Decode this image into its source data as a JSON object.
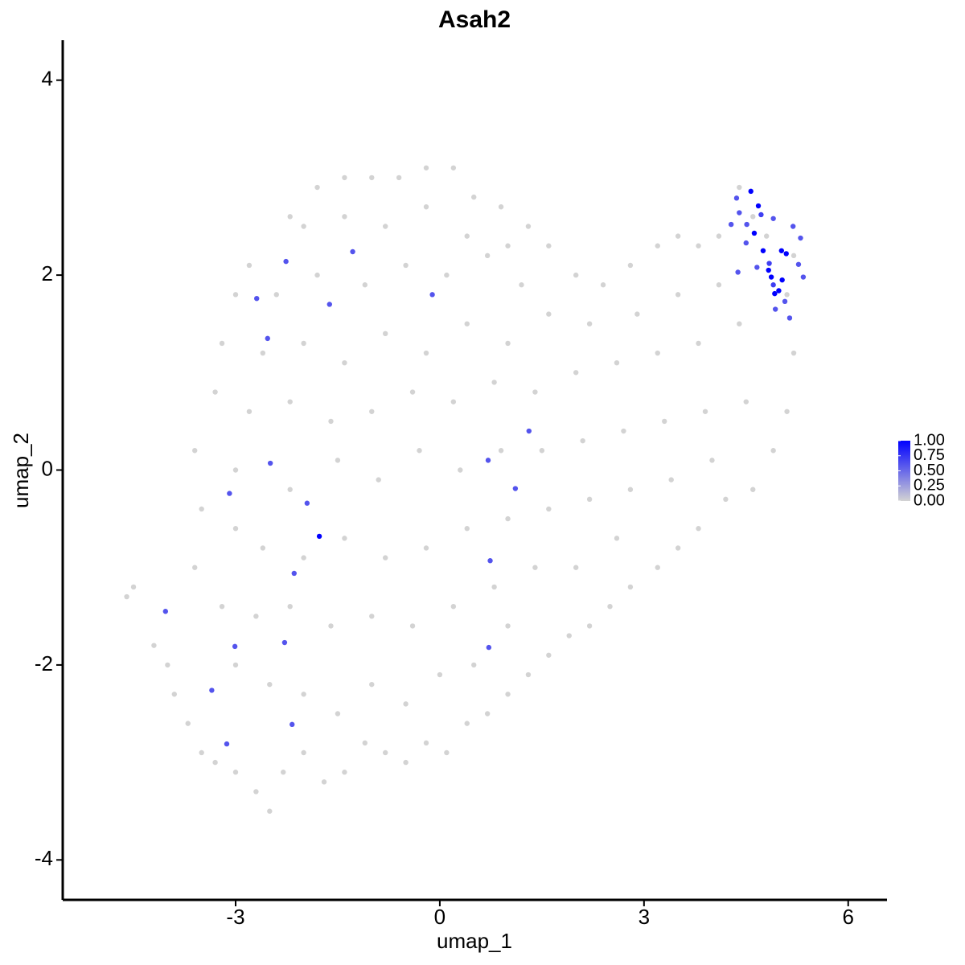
{
  "chart_data": {
    "type": "scatter",
    "title": "Asah2",
    "x_label": "umap_1",
    "y_label": "umap_2",
    "xlim": [
      -5.54,
      6.57
    ],
    "ylim": [
      -4.41,
      4.41
    ],
    "xticks": [
      -3,
      0,
      3,
      6
    ],
    "yticks": [
      -4,
      -2,
      0,
      2,
      4
    ],
    "colorbar": {
      "colors": [
        "#d3d3d3",
        "#0000ff"
      ],
      "lim": [
        0,
        1
      ],
      "ticks": [
        {
          "value": 0,
          "label": "0.00"
        },
        {
          "value": 0.25,
          "label": "0.25"
        },
        {
          "value": 0.5,
          "label": "0.50"
        },
        {
          "value": 0.75,
          "label": "0.75"
        },
        {
          "value": 1,
          "label": "1.00"
        }
      ]
    },
    "series": [
      {
        "expression": 0,
        "x": [
          -4.6,
          -4.5,
          -4.2,
          -4.0,
          -3.9,
          -3.7,
          -3.5,
          -3.3,
          -3.0,
          -2.7,
          -2.5,
          -2.3,
          -2.0,
          -1.7,
          -1.4,
          -1.1,
          -0.8,
          -0.5,
          -0.2,
          0.1,
          0.4,
          0.7,
          1.0,
          -3.6,
          -3.5,
          -3.6,
          -3.3,
          -3.2,
          -3.0,
          -2.8,
          -2.2,
          -1.8,
          -1.4,
          -1.0,
          -0.6,
          -0.2,
          0.2,
          0.5,
          0.9,
          1.3,
          1.6,
          2.0,
          2.4,
          2.8,
          3.2,
          3.5,
          3.8,
          4.1,
          4.4,
          4.6,
          4.8,
          5.2,
          5.1,
          5.2,
          5.1,
          4.9,
          4.6,
          4.2,
          3.8,
          3.5,
          3.2,
          2.8,
          2.5,
          2.2,
          1.9,
          1.6,
          1.3,
          -3.0,
          -2.5,
          -2.0,
          -1.5,
          -1.0,
          -0.5,
          0.0,
          0.5,
          1.0,
          -3.2,
          -2.7,
          -2.2,
          -1.6,
          -1.0,
          -0.4,
          0.2,
          0.8,
          1.4,
          2.0,
          2.6,
          -3.0,
          -2.6,
          -2.0,
          -1.4,
          -0.8,
          -0.2,
          0.4,
          1.0,
          1.6,
          2.2,
          2.8,
          3.4,
          4.0,
          -3.0,
          -2.2,
          -1.5,
          -0.9,
          -0.3,
          0.3,
          0.9,
          1.5,
          2.1,
          2.7,
          3.3,
          3.9,
          4.5,
          -2.8,
          -2.2,
          -1.6,
          -1.0,
          -0.4,
          0.2,
          0.8,
          1.4,
          2.0,
          2.6,
          3.2,
          3.8,
          4.4,
          -2.6,
          -2.0,
          -1.4,
          -0.8,
          -0.2,
          0.4,
          1.0,
          1.6,
          2.2,
          2.9,
          3.5,
          4.1,
          -2.4,
          -1.8,
          -1.1,
          -0.5,
          0.1,
          0.7,
          1.2,
          -2.0,
          -1.4,
          -0.8,
          -0.2,
          0.4,
          1.0
        ],
        "y": [
          -1.3,
          -1.2,
          -1.8,
          -2.0,
          -2.3,
          -2.6,
          -2.9,
          -3.0,
          -3.1,
          -3.3,
          -3.5,
          -3.1,
          -2.9,
          -3.2,
          -3.1,
          -2.8,
          -2.9,
          -3.0,
          -2.8,
          -2.9,
          -2.6,
          -2.5,
          -2.3,
          -1.0,
          -0.4,
          0.2,
          0.8,
          1.3,
          1.8,
          2.1,
          2.6,
          2.9,
          3.0,
          3.0,
          3.0,
          3.1,
          3.1,
          2.8,
          2.7,
          2.5,
          2.3,
          2.0,
          1.9,
          2.1,
          2.3,
          2.4,
          2.3,
          2.4,
          2.9,
          2.6,
          2.4,
          2.2,
          1.8,
          1.2,
          0.6,
          0.2,
          -0.2,
          -0.3,
          -0.6,
          -0.8,
          -1.0,
          -1.2,
          -1.4,
          -1.6,
          -1.7,
          -1.9,
          -2.1,
          -2.0,
          -2.2,
          -2.3,
          -2.5,
          -2.2,
          -2.4,
          -2.1,
          -2.0,
          -1.6,
          -1.4,
          -1.5,
          -1.4,
          -1.6,
          -1.5,
          -1.6,
          -1.4,
          -1.2,
          -1.0,
          -1.0,
          -0.7,
          -0.6,
          -0.8,
          -0.9,
          -0.7,
          -0.9,
          -0.8,
          -0.6,
          -0.5,
          -0.4,
          -0.3,
          -0.2,
          -0.1,
          0.1,
          0.0,
          -0.2,
          0.1,
          -0.1,
          0.2,
          0.0,
          0.2,
          0.2,
          0.3,
          0.4,
          0.5,
          0.6,
          0.7,
          0.6,
          0.7,
          0.5,
          0.6,
          0.8,
          0.7,
          0.9,
          0.8,
          1.0,
          1.1,
          1.2,
          1.3,
          1.5,
          1.2,
          1.3,
          1.1,
          1.4,
          1.2,
          1.5,
          1.3,
          1.6,
          1.5,
          1.6,
          1.8,
          1.9,
          1.8,
          2.0,
          1.9,
          2.1,
          2.0,
          2.2,
          1.9,
          2.5,
          2.6,
          2.5,
          2.7,
          2.4,
          2.3
        ]
      },
      {
        "x": [
          -1.28,
          -2.26,
          -2.69,
          -1.62,
          -0.11,
          -2.53,
          1.31,
          -2.49,
          0.71,
          1.11,
          -3.09,
          -1.95,
          -1.77,
          -2.14,
          0.74,
          -4.03,
          -2.28,
          -3.01,
          0.72,
          -3.35,
          -2.17,
          -3.13,
          4.57,
          4.36,
          4.68,
          4.72,
          4.4,
          4.51,
          4.28,
          4.62,
          4.9,
          5.19,
          5.3,
          4.5,
          4.75,
          5.02,
          5.09,
          4.84,
          5.27,
          4.38,
          4.66,
          4.83,
          4.87,
          5.03,
          5.34,
          4.9,
          4.98,
          4.92,
          5.07,
          4.93,
          5.14
        ],
        "y": [
          2.24,
          2.14,
          1.76,
          1.7,
          1.8,
          1.35,
          0.4,
          0.07,
          0.1,
          -0.19,
          -0.24,
          -0.34,
          -0.68,
          -1.06,
          -0.93,
          -1.45,
          -1.77,
          -1.81,
          -1.82,
          -2.26,
          -2.61,
          -2.81,
          2.86,
          2.79,
          2.71,
          2.62,
          2.64,
          2.52,
          2.52,
          2.43,
          2.58,
          2.5,
          2.38,
          2.33,
          2.25,
          2.25,
          2.22,
          2.12,
          2.11,
          2.03,
          2.08,
          2.05,
          1.98,
          1.95,
          1.98,
          1.9,
          1.84,
          1.81,
          1.73,
          1.65,
          1.56
        ],
        "expression": [
          0.6,
          0.6,
          0.6,
          0.6,
          0.6,
          0.6,
          0.6,
          0.6,
          0.6,
          0.6,
          0.6,
          0.6,
          1.0,
          0.6,
          0.6,
          0.6,
          0.6,
          0.6,
          0.6,
          0.6,
          0.6,
          0.6,
          1.0,
          0.6,
          1.0,
          0.7,
          0.6,
          0.6,
          0.6,
          1.0,
          0.6,
          0.6,
          0.6,
          0.6,
          1.0,
          1.0,
          1.0,
          0.7,
          0.6,
          0.6,
          0.6,
          1.0,
          1.0,
          1.0,
          0.6,
          0.7,
          1.0,
          1.0,
          0.6,
          0.6,
          0.6
        ]
      }
    ]
  }
}
